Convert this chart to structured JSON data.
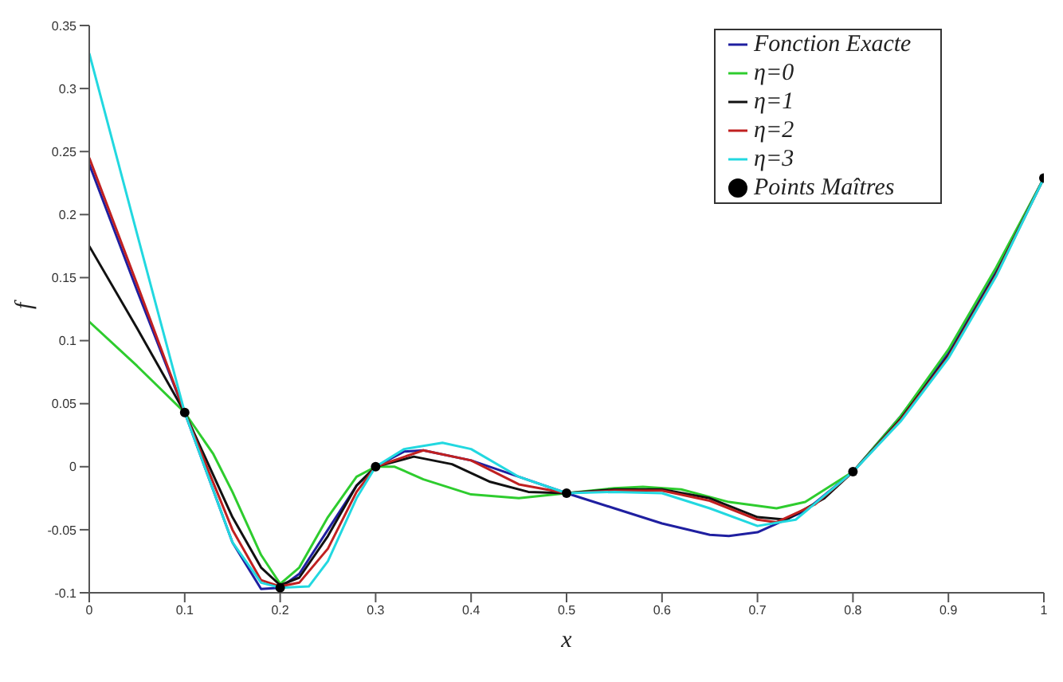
{
  "chart_data": {
    "type": "line",
    "xlabel": "x",
    "ylabel": "f",
    "xlim": [
      0,
      1
    ],
    "xticks": [
      0,
      0.1,
      0.2,
      0.3,
      0.4,
      0.5,
      0.6,
      0.7,
      0.8,
      0.9,
      1
    ],
    "ylim": [
      -0.1,
      0.35
    ],
    "yticks": [
      -0.1,
      -0.05,
      0,
      0.05,
      0.1,
      0.15,
      0.2,
      0.25,
      0.3,
      0.35
    ],
    "grid": false,
    "legend": "top right",
    "marker": "none",
    "line_style": "solid",
    "series": [
      {
        "name": "Fonction Exacte",
        "color": "#1f1fa0",
        "x": [
          0,
          0.05,
          0.1,
          0.15,
          0.18,
          0.2,
          0.22,
          0.25,
          0.28,
          0.3,
          0.33,
          0.35,
          0.4,
          0.45,
          0.5,
          0.55,
          0.6,
          0.65,
          0.67,
          0.7,
          0.75,
          0.8,
          0.85,
          0.9,
          0.95,
          1
        ],
        "values": [
          0.24,
          0.14,
          0.043,
          -0.06,
          -0.097,
          -0.096,
          -0.085,
          -0.05,
          -0.015,
          0,
          0.012,
          0.013,
          0.005,
          -0.008,
          -0.021,
          -0.033,
          -0.045,
          -0.054,
          -0.055,
          -0.052,
          -0.035,
          -0.004,
          0.04,
          0.09,
          0.155,
          0.229
        ]
      },
      {
        "name": "η=0",
        "color": "#2ecc2e",
        "x": [
          0,
          0.05,
          0.1,
          0.13,
          0.15,
          0.18,
          0.2,
          0.22,
          0.25,
          0.28,
          0.3,
          0.32,
          0.35,
          0.4,
          0.45,
          0.5,
          0.55,
          0.58,
          0.62,
          0.67,
          0.72,
          0.75,
          0.8,
          0.85,
          0.9,
          0.95,
          1
        ],
        "values": [
          0.115,
          0.08,
          0.043,
          0.01,
          -0.02,
          -0.07,
          -0.093,
          -0.08,
          -0.04,
          -0.008,
          0,
          0,
          -0.01,
          -0.022,
          -0.025,
          -0.021,
          -0.017,
          -0.016,
          -0.018,
          -0.028,
          -0.033,
          -0.028,
          -0.004,
          0.04,
          0.093,
          0.158,
          0.229
        ]
      },
      {
        "name": "η=1",
        "color": "#111111",
        "x": [
          0,
          0.05,
          0.1,
          0.15,
          0.18,
          0.2,
          0.22,
          0.25,
          0.28,
          0.3,
          0.34,
          0.38,
          0.42,
          0.46,
          0.5,
          0.55,
          0.6,
          0.65,
          0.7,
          0.73,
          0.77,
          0.8,
          0.85,
          0.9,
          0.95,
          1
        ],
        "values": [
          0.175,
          0.11,
          0.043,
          -0.04,
          -0.08,
          -0.094,
          -0.088,
          -0.055,
          -0.015,
          0,
          0.008,
          0.002,
          -0.012,
          -0.02,
          -0.021,
          -0.018,
          -0.018,
          -0.025,
          -0.04,
          -0.042,
          -0.025,
          -0.004,
          0.038,
          0.088,
          0.153,
          0.229
        ]
      },
      {
        "name": "η=2",
        "color": "#c02020",
        "x": [
          0,
          0.05,
          0.1,
          0.15,
          0.18,
          0.2,
          0.22,
          0.25,
          0.28,
          0.3,
          0.35,
          0.4,
          0.45,
          0.5,
          0.55,
          0.6,
          0.65,
          0.7,
          0.72,
          0.76,
          0.8,
          0.85,
          0.9,
          0.95,
          1
        ],
        "values": [
          0.245,
          0.145,
          0.043,
          -0.05,
          -0.09,
          -0.095,
          -0.092,
          -0.065,
          -0.02,
          0,
          0.013,
          0.005,
          -0.014,
          -0.021,
          -0.019,
          -0.019,
          -0.027,
          -0.042,
          -0.044,
          -0.03,
          -0.004,
          0.037,
          0.087,
          0.152,
          0.229
        ]
      },
      {
        "name": "η=3",
        "color": "#22d8e0",
        "x": [
          0,
          0.05,
          0.1,
          0.15,
          0.18,
          0.2,
          0.23,
          0.25,
          0.28,
          0.3,
          0.33,
          0.37,
          0.4,
          0.45,
          0.5,
          0.55,
          0.6,
          0.65,
          0.7,
          0.74,
          0.8,
          0.85,
          0.9,
          0.95,
          1
        ],
        "values": [
          0.328,
          0.185,
          0.043,
          -0.06,
          -0.092,
          -0.096,
          -0.095,
          -0.075,
          -0.025,
          0,
          0.014,
          0.019,
          0.014,
          -0.008,
          -0.021,
          -0.02,
          -0.021,
          -0.033,
          -0.047,
          -0.042,
          -0.004,
          0.036,
          0.086,
          0.151,
          0.229
        ]
      },
      {
        "name": "Points Maîtres",
        "type": "scatter",
        "marker": "circle",
        "color": "#000000",
        "x": [
          0.1,
          0.2,
          0.3,
          0.5,
          0.8,
          1
        ],
        "values": [
          0.043,
          -0.096,
          0,
          -0.021,
          -0.004,
          0.229
        ]
      }
    ]
  }
}
